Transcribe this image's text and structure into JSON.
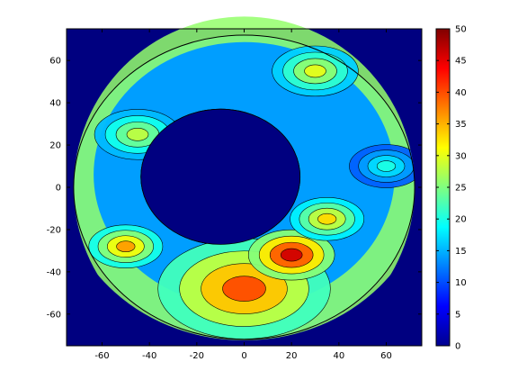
{
  "chart_data": {
    "type": "heatmap",
    "title": "",
    "xlabel": "",
    "ylabel": "",
    "xlim": [
      -75,
      75
    ],
    "ylim": [
      -75,
      75
    ],
    "x_ticks": [
      -60,
      -40,
      -20,
      0,
      20,
      40,
      60
    ],
    "y_ticks": [
      60,
      40,
      20,
      0,
      -20,
      -40,
      -60
    ],
    "colorbar": {
      "min": 0,
      "max": 50,
      "ticks": [
        0,
        5,
        10,
        15,
        20,
        25,
        30,
        35,
        40,
        45,
        50
      ],
      "colormap": "jet"
    },
    "disk_radius": 72,
    "background_value": 0,
    "features": [
      {
        "x": -10,
        "y": 5,
        "r": 32,
        "value": 0,
        "note": "central low region"
      },
      {
        "x": 0,
        "y": -48,
        "r": 28,
        "value": 40
      },
      {
        "x": 20,
        "y": -32,
        "r": 14,
        "value": 46
      },
      {
        "x": -50,
        "y": -28,
        "r": 12,
        "value": 36
      },
      {
        "x": 35,
        "y": -15,
        "r": 12,
        "value": 33
      },
      {
        "x": 30,
        "y": 55,
        "r": 14,
        "value": 30
      },
      {
        "x": -45,
        "y": 25,
        "r": 14,
        "value": 28
      },
      {
        "x": 60,
        "y": 10,
        "r": 12,
        "value": 20
      }
    ]
  }
}
